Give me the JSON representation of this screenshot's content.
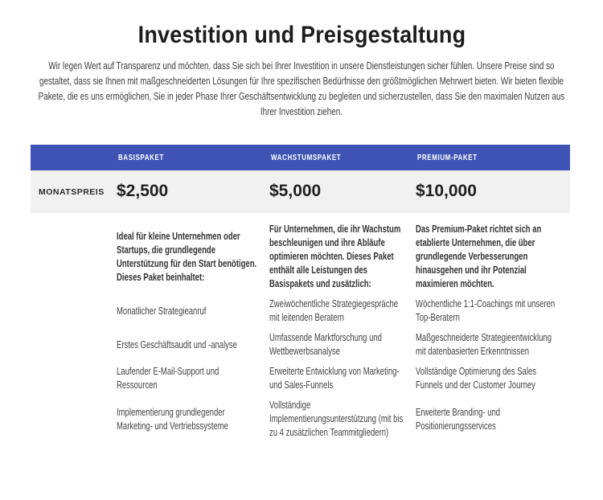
{
  "header": {
    "title": "Investition und Preisgestaltung",
    "intro": "Wir legen Wert auf Transparenz und möchten, dass Sie sich bei Ihrer Investition in unsere Dienstleistungen sicher fühlen. Unsere Preise sind so gestaltet, dass sie Ihnen mit maßgeschneiderten Lösungen für Ihre spezifischen Bedürfnisse den größtmöglichen Mehrwert bieten. Wir bieten flexible Pakete, die es uns ermöglichen, Sie in jeder Phase Ihrer Geschäftsentwicklung zu begleiten und sicherzustellen, dass Sie den maximalen Nutzen aus Ihrer Investition ziehen."
  },
  "table": {
    "price_row_label": "MONATSPREIS",
    "columns": [
      {
        "header": "BASISPAKET",
        "price": "$2,500",
        "description": "Ideal für kleine Unternehmen oder Startups, die grundlegende Unterstützung für den Start benötigen. Dieses Paket beinhaltet:"
      },
      {
        "header": "WACHSTUMSPAKET",
        "price": "$5,000",
        "description": "Für Unternehmen, die ihr Wachstum beschleunigen und ihre Abläufe optimieren möchten. Dieses Paket enthält alle Leistungen des Basispakets und zusätzlich:"
      },
      {
        "header": "PREMIUM-PAKET",
        "price": "$10,000",
        "description": "Das Premium-Paket richtet sich an etablierte Unternehmen, die über grundlegende Verbesserungen hinausgehen und ihr Potenzial maximieren möchten."
      }
    ],
    "feature_rows": [
      [
        "Monatlicher Strategieanruf",
        "Zweiwöchentliche Strategiegespräche mit leitenden Beratern",
        "Wöchentliche 1:1-Coachings mit unseren Top-Beratern"
      ],
      [
        "Erstes Geschäftsaudit und -analyse",
        "Umfassende Marktforschung und Wettbewerbsanalyse",
        "Maßgeschneiderte Strategieentwicklung mit datenbasierten Erkenntnissen"
      ],
      [
        "Laufender E-Mail-Support und Ressourcen",
        "Erweiterte Entwicklung von Marketing- und Sales-Funnels",
        "Vollständige Optimierung des Sales Funnels und der Customer Journey"
      ],
      [
        "Implementierung grundlegender Marketing- und Vertriebssysteme",
        "Vollständige Implementierungsunterstützung (mit bis zu 4 zusätzlichen Teammitgliedern)",
        "Erweiterte Branding- und Positionierungsservices"
      ]
    ],
    "colors": {
      "header_bg": "#3e53b4",
      "price_row_bg": "#f1f1f1"
    }
  }
}
